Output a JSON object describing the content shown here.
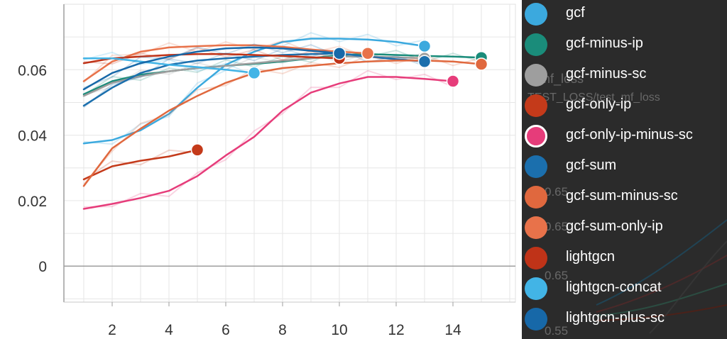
{
  "chart_data": {
    "type": "line",
    "title": "",
    "xlabel": "",
    "ylabel": "",
    "xlim": [
      0.3,
      16.2
    ],
    "ylim": [
      -0.011,
      0.08
    ],
    "x_ticks": [
      2,
      4,
      6,
      8,
      10,
      12,
      14
    ],
    "y_ticks": [
      0,
      0.02,
      0.04,
      0.06
    ],
    "y_tick_labels": [
      "0",
      "0.02",
      "0.04",
      "0.06"
    ],
    "grid": true,
    "series": [
      {
        "name": "gcf",
        "color": "#3ba9de",
        "x": [
          1,
          2,
          3,
          4,
          5,
          6,
          7,
          8,
          9,
          10,
          11,
          12,
          13
        ],
        "values": [
          0.0375,
          0.0385,
          0.0415,
          0.0465,
          0.0545,
          0.0615,
          0.0655,
          0.0685,
          0.0695,
          0.0695,
          0.0692,
          0.0685,
          0.0672
        ]
      },
      {
        "name": "gcf-minus-ip",
        "color": "#1a8c7a",
        "x": [
          1,
          2,
          3,
          4,
          5,
          6,
          7,
          8,
          9,
          10,
          11,
          12,
          13,
          14,
          15
        ],
        "values": [
          0.0525,
          0.0565,
          0.0585,
          0.0595,
          0.0605,
          0.0612,
          0.0618,
          0.0625,
          0.0635,
          0.0645,
          0.0648,
          0.0645,
          0.0642,
          0.064,
          0.0637
        ]
      },
      {
        "name": "gcf-minus-sc",
        "color": "#9e9e9e",
        "x": [
          1,
          2,
          3,
          4,
          5,
          6,
          7,
          8,
          9,
          10,
          11,
          12,
          13
        ],
        "values": [
          0.052,
          0.056,
          0.058,
          0.0595,
          0.0605,
          0.0612,
          0.062,
          0.0628,
          0.0635,
          0.064,
          0.064,
          0.0638,
          0.0635
        ]
      },
      {
        "name": "gcf-only-ip",
        "color": "#c43a1a",
        "x": [
          1,
          2,
          3,
          4,
          5
        ],
        "values": [
          0.0265,
          0.0305,
          0.0322,
          0.0335,
          0.0355
        ]
      },
      {
        "name": "gcf-only-ip-minus-sc",
        "color": "#e63c7a",
        "x": [
          1,
          2,
          3,
          4,
          5,
          6,
          7,
          8,
          9,
          10,
          11,
          12,
          13,
          14
        ],
        "values": [
          0.0175,
          0.019,
          0.0208,
          0.023,
          0.0275,
          0.0338,
          0.0395,
          0.0475,
          0.053,
          0.0558,
          0.0578,
          0.0578,
          0.0572,
          0.0565
        ]
      },
      {
        "name": "gcf-sum",
        "color": "#1b6fad",
        "x": [
          1,
          2,
          3,
          4,
          5,
          6,
          7,
          8,
          9,
          10,
          11,
          12,
          13
        ],
        "values": [
          0.049,
          0.0545,
          0.059,
          0.0615,
          0.0628,
          0.0635,
          0.064,
          0.0645,
          0.0648,
          0.065,
          0.064,
          0.0632,
          0.0625
        ]
      },
      {
        "name": "gcf-sum-minus-sc",
        "color": "#e0683e",
        "x": [
          1,
          2,
          3,
          4,
          5,
          6,
          7,
          8,
          9,
          10,
          11,
          12,
          13,
          14,
          15
        ],
        "values": [
          0.0245,
          0.036,
          0.042,
          0.0475,
          0.052,
          0.056,
          0.059,
          0.0605,
          0.0612,
          0.062,
          0.0625,
          0.0628,
          0.0628,
          0.0625,
          0.0617
        ]
      },
      {
        "name": "gcf-sum-only-ip",
        "color": "#e8724a",
        "x": [
          1,
          2,
          3,
          4,
          5,
          6,
          7,
          8,
          9,
          10,
          11
        ],
        "values": [
          0.0565,
          0.0625,
          0.0655,
          0.0668,
          0.0672,
          0.0675,
          0.0675,
          0.067,
          0.0662,
          0.0655,
          0.065
        ]
      },
      {
        "name": "lightgcn",
        "color": "#bf3318",
        "x": [
          1,
          2,
          3,
          4,
          5,
          6,
          7,
          8,
          9,
          10
        ],
        "values": [
          0.062,
          0.0635,
          0.064,
          0.0645,
          0.0648,
          0.0648,
          0.0645,
          0.0642,
          0.0638,
          0.0635
        ]
      },
      {
        "name": "lightgcn-concat",
        "color": "#42b4e6",
        "x": [
          1,
          2,
          3,
          4,
          5,
          6,
          7
        ],
        "values": [
          0.0635,
          0.0635,
          0.0625,
          0.0615,
          0.0608,
          0.06,
          0.059
        ]
      },
      {
        "name": "lightgcn-plus-sc",
        "color": "#1768a8",
        "x": [
          1,
          2,
          3,
          4,
          5,
          6,
          7,
          8,
          9,
          10
        ],
        "values": [
          0.054,
          0.059,
          0.062,
          0.064,
          0.0655,
          0.0665,
          0.0668,
          0.0665,
          0.0658,
          0.065
        ]
      }
    ]
  },
  "legend": {
    "items": [
      {
        "label": "gcf",
        "color": "#3ba9de"
      },
      {
        "label": "gcf-minus-ip",
        "color": "#1a8c7a"
      },
      {
        "label": "gcf-minus-sc",
        "color": "#9e9e9e"
      },
      {
        "label": "gcf-only-ip",
        "color": "#c43a1a"
      },
      {
        "label": "gcf-only-ip-minus-sc",
        "color": "#e63c7a",
        "ring": "#ffffff"
      },
      {
        "label": "gcf-sum",
        "color": "#1b6fad"
      },
      {
        "label": "gcf-sum-minus-sc",
        "color": "#e0683e"
      },
      {
        "label": "gcf-sum-only-ip",
        "color": "#e8724a"
      },
      {
        "label": "lightgcn",
        "color": "#bf3318"
      },
      {
        "label": "lightgcn-concat",
        "color": "#42b4e6"
      },
      {
        "label": "lightgcn-plus-sc",
        "color": "#1768a8"
      }
    ]
  },
  "background_panel": {
    "title_fragment": "mf_loss",
    "tag": "TEST_LOSS/test_mf_loss",
    "y_ticks": [
      "0.65",
      "0.65",
      "0.65",
      "0.55"
    ]
  }
}
